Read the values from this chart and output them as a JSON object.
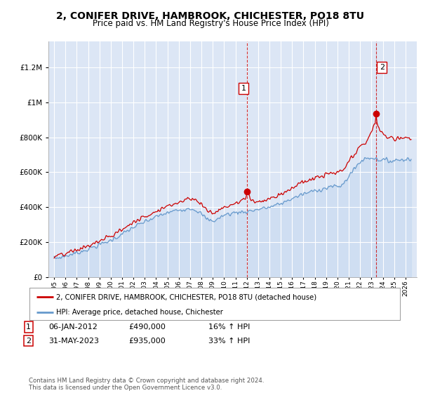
{
  "title": "2, CONIFER DRIVE, HAMBROOK, CHICHESTER, PO18 8TU",
  "subtitle": "Price paid vs. HM Land Registry's House Price Index (HPI)",
  "title_fontsize": 10,
  "subtitle_fontsize": 8.5,
  "background_color": "#ffffff",
  "plot_bg_color": "#dce6f5",
  "grid_color": "#ffffff",
  "sale1_date_val": 2012.03,
  "sale1_price": 490000,
  "sale1_label": "1",
  "sale2_date_val": 2023.42,
  "sale2_price": 935000,
  "sale2_label": "2",
  "ylabel_ticks": [
    "£0",
    "£200K",
    "£400K",
    "£600K",
    "£800K",
    "£1M",
    "£1.2M"
  ],
  "ytick_vals": [
    0,
    200000,
    400000,
    600000,
    800000,
    1000000,
    1200000
  ],
  "ylim": [
    0,
    1350000
  ],
  "xlim_start": 1994.5,
  "xlim_end": 2027.0,
  "xtick_years": [
    1995,
    1996,
    1997,
    1998,
    1999,
    2000,
    2001,
    2002,
    2003,
    2004,
    2005,
    2006,
    2007,
    2008,
    2009,
    2010,
    2011,
    2012,
    2013,
    2014,
    2015,
    2016,
    2017,
    2018,
    2019,
    2020,
    2021,
    2022,
    2023,
    2024,
    2025,
    2026
  ],
  "legend_house_label": "2, CONIFER DRIVE, HAMBROOK, CHICHESTER, PO18 8TU (detached house)",
  "legend_hpi_label": "HPI: Average price, detached house, Chichester",
  "note1_label": "1",
  "note1_date": "06-JAN-2012",
  "note1_price": "£490,000",
  "note1_hpi": "16% ↑ HPI",
  "note2_label": "2",
  "note2_date": "31-MAY-2023",
  "note2_price": "£935,000",
  "note2_hpi": "33% ↑ HPI",
  "footer": "Contains HM Land Registry data © Crown copyright and database right 2024.\nThis data is licensed under the Open Government Licence v3.0.",
  "house_color": "#cc0000",
  "hpi_color": "#6699cc",
  "hpi_fill_color": "#c5d9f1",
  "vline_color": "#cc0000"
}
